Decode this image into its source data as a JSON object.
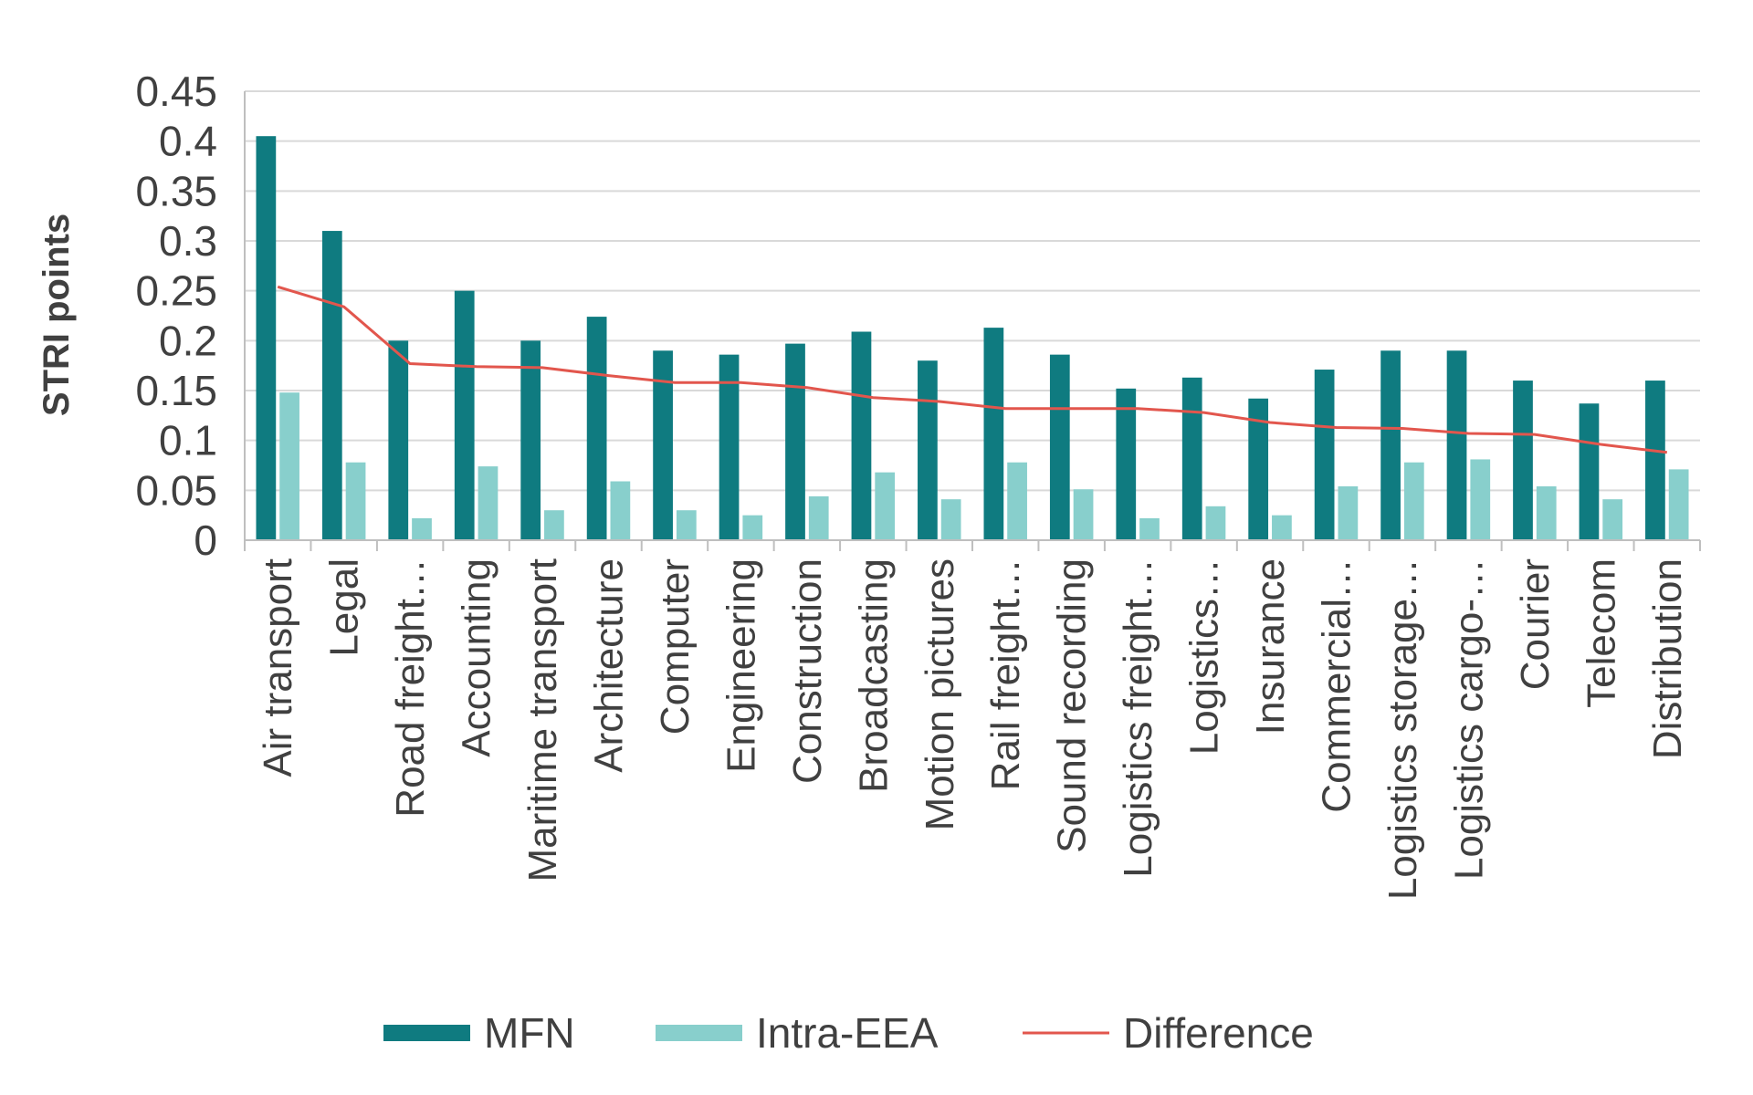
{
  "chart_data": {
    "type": "bar",
    "title": "",
    "xlabel": "",
    "ylabel": "STRI points",
    "ylim": [
      0,
      0.45
    ],
    "yticks": [
      0,
      0.05,
      0.1,
      0.15,
      0.2,
      0.25,
      0.3,
      0.35,
      0.4,
      0.45
    ],
    "ytick_labels": [
      "0",
      "0.05",
      "0.1",
      "0.15",
      "0.2",
      "0.25",
      "0.3",
      "0.35",
      "0.4",
      "0.45"
    ],
    "grid": true,
    "legend_position": "bottom",
    "categories": [
      "Air transport",
      "Legal",
      "Road freight…",
      "Accounting",
      "Maritime transport",
      "Architecture",
      "Computer",
      "Engineering",
      "Construction",
      "Broadcasting",
      "Motion pictures",
      "Rail freight…",
      "Sound recording",
      "Logistics freight…",
      "Logistics…",
      "Insurance",
      "Commercial…",
      "Logistics storage…",
      "Logistics cargo-…",
      "Courier",
      "Telecom",
      "Distribution"
    ],
    "series": [
      {
        "name": "MFN",
        "type": "bar",
        "color": "#0f7b80",
        "values": [
          0.405,
          0.31,
          0.2,
          0.25,
          0.2,
          0.224,
          0.19,
          0.186,
          0.197,
          0.209,
          0.18,
          0.213,
          0.186,
          0.152,
          0.163,
          0.142,
          0.171,
          0.19,
          0.19,
          0.16,
          0.137,
          0.16
        ]
      },
      {
        "name": "Intra-EEA",
        "type": "bar",
        "color": "#88cfcc",
        "values": [
          0.148,
          0.078,
          0.022,
          0.074,
          0.03,
          0.059,
          0.03,
          0.025,
          0.044,
          0.068,
          0.041,
          0.078,
          0.051,
          0.022,
          0.034,
          0.025,
          0.054,
          0.078,
          0.081,
          0.054,
          0.041,
          0.071
        ]
      },
      {
        "name": "Difference",
        "type": "line",
        "color": "#e2564d",
        "values": [
          0.254,
          0.234,
          0.177,
          0.174,
          0.173,
          0.165,
          0.158,
          0.158,
          0.153,
          0.143,
          0.139,
          0.132,
          0.132,
          0.132,
          0.128,
          0.118,
          0.113,
          0.112,
          0.107,
          0.106,
          0.096,
          0.088
        ]
      }
    ]
  }
}
